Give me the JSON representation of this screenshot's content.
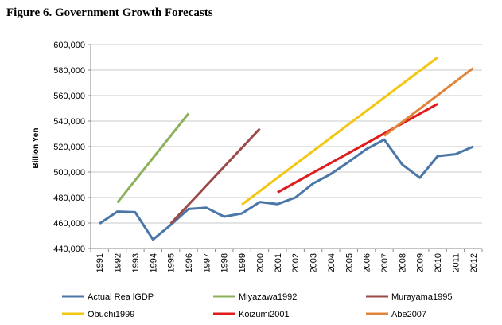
{
  "figure": {
    "title": "Figure 6. Government Growth Forecasts"
  },
  "chart_data": {
    "type": "line",
    "title": "",
    "xlabel": "",
    "ylabel": "Billion Yen",
    "ylim": [
      440000,
      600000
    ],
    "yticks": [
      440000,
      460000,
      480000,
      500000,
      520000,
      540000,
      560000,
      580000,
      600000
    ],
    "ytick_labels": [
      "440,000",
      "460,000",
      "480,000",
      "500,000",
      "520,000",
      "540,000",
      "560,000",
      "580,000",
      "600,000"
    ],
    "x": [
      "1991",
      "1992",
      "1993",
      "1994",
      "1995",
      "1996",
      "1997",
      "1998",
      "1999",
      "2000",
      "2001",
      "2002",
      "2003",
      "2004",
      "2005",
      "2006",
      "2007",
      "2008",
      "2009",
      "2010",
      "2011",
      "2012"
    ],
    "grid": "horizontal",
    "legend_position": "bottom",
    "series": [
      {
        "name": "Actual Rea lGDP",
        "color": "#4a76a8",
        "x": [
          "1991",
          "1992",
          "1993",
          "1994",
          "1995",
          "1996",
          "1997",
          "1998",
          "1999",
          "2000",
          "2001",
          "2002",
          "2003",
          "2004",
          "2005",
          "2006",
          "2007",
          "2008",
          "2009",
          "2010",
          "2011",
          "2012"
        ],
        "values": [
          459500,
          469000,
          468500,
          447000,
          458500,
          471000,
          472000,
          465000,
          467500,
          476500,
          474800,
          480000,
          491000,
          498500,
          508000,
          518000,
          525500,
          506000,
          495500,
          512500,
          514000,
          520000
        ]
      },
      {
        "name": "Miyazawa1992",
        "color": "#8db05b",
        "x": [
          "1992",
          "1996"
        ],
        "values": [
          476000,
          546000
        ]
      },
      {
        "name": "Murayama1995",
        "color": "#9c4a47",
        "x": [
          "1995",
          "2000"
        ],
        "values": [
          459500,
          534000
        ]
      },
      {
        "name": "Obuchi1999",
        "color": "#f2c611",
        "x": [
          "1999",
          "2010"
        ],
        "values": [
          474500,
          590000
        ]
      },
      {
        "name": "Koizumi2001",
        "color": "#e01b1b",
        "x": [
          "2001",
          "2010"
        ],
        "values": [
          484000,
          553500
        ]
      },
      {
        "name": "Abe2007",
        "color": "#e0853c",
        "x": [
          "2007",
          "2012"
        ],
        "values": [
          528500,
          581500
        ]
      }
    ]
  }
}
